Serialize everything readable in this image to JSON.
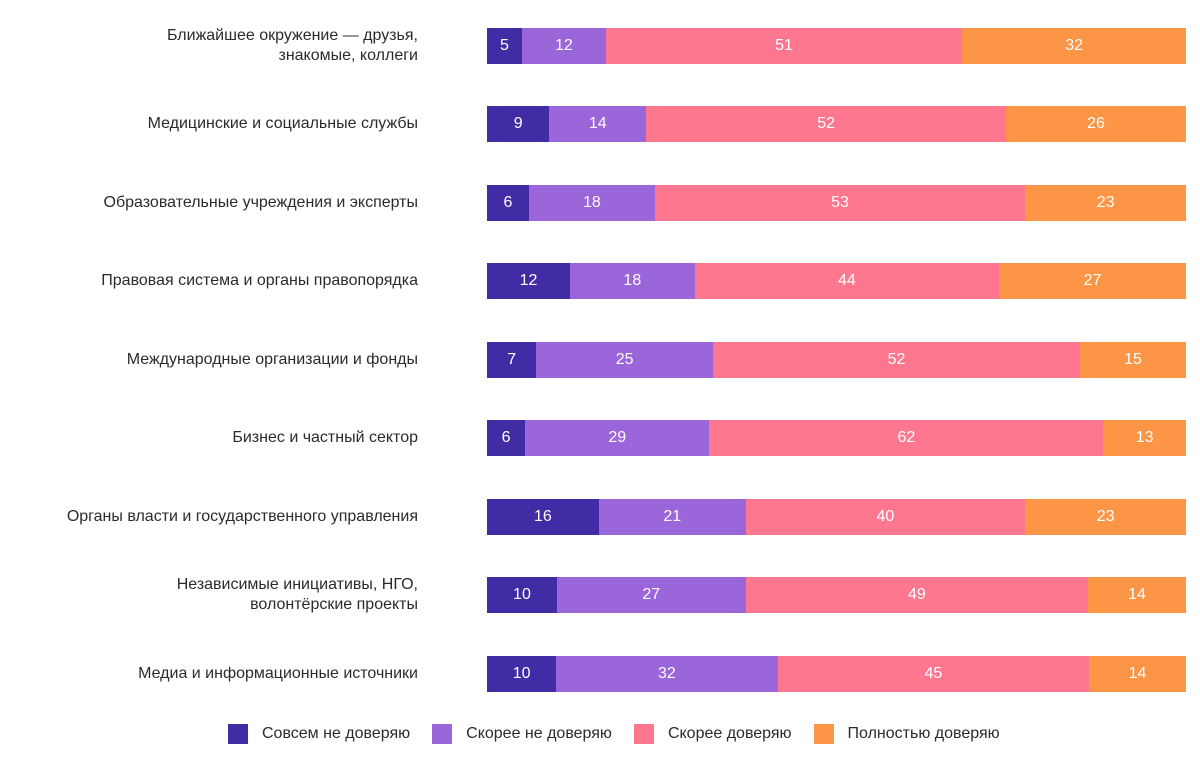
{
  "chart_data": {
    "type": "bar",
    "orientation": "horizontal-stacked",
    "title": "",
    "xlabel": "",
    "ylabel": "",
    "categories": [
      [
        "Ближайшее окружение — друзья,",
        "знакомые, коллеги"
      ],
      [
        "Медицинские и социальные службы"
      ],
      [
        "Образовательные учреждения и эксперты"
      ],
      [
        "Правовая система и органы правопорядка"
      ],
      [
        "Международные организации и фонды"
      ],
      [
        "Бизнес и частный сектор"
      ],
      [
        "Органы власти и государственного управления"
      ],
      [
        "Независимые инициативы, НГО,",
        "волонтёрские проекты"
      ],
      [
        "Медиа и информационные источники"
      ]
    ],
    "series": [
      {
        "name": "Совсем не доверяю",
        "color": "#412ca5",
        "values": [
          5,
          9,
          6,
          12,
          7,
          6,
          16,
          10,
          10
        ]
      },
      {
        "name": "Скорее не доверяю",
        "color": "#9b66da",
        "values": [
          12,
          14,
          18,
          18,
          25,
          29,
          21,
          27,
          32
        ]
      },
      {
        "name": "Скорее доверяю",
        "color": "#ff778f",
        "values": [
          51,
          52,
          53,
          44,
          52,
          62,
          40,
          49,
          45
        ]
      },
      {
        "name": "Полностью доверяю",
        "color": "#fd9547",
        "values": [
          32,
          26,
          23,
          27,
          15,
          13,
          23,
          14,
          14
        ]
      }
    ],
    "data_labels": true,
    "grid": false,
    "legend_position": "bottom"
  }
}
